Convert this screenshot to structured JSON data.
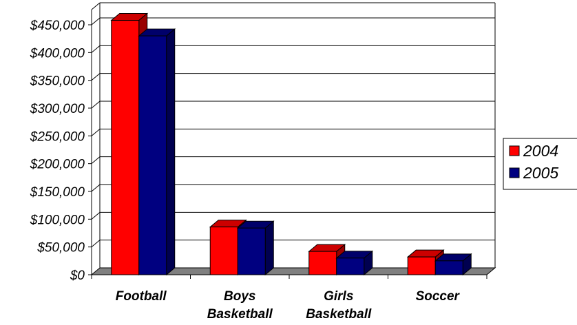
{
  "chart_data": {
    "type": "bar",
    "title": "",
    "xlabel": "",
    "ylabel": "",
    "categories": [
      [
        "Football"
      ],
      [
        "Boys",
        "Basketball"
      ],
      [
        "Girls",
        "Basketball"
      ],
      [
        "Soccer"
      ]
    ],
    "series": [
      {
        "name": "2004",
        "values": [
          458000,
          86000,
          42000,
          32000
        ]
      },
      {
        "name": "2005",
        "values": [
          430000,
          84000,
          30000,
          25000
        ]
      }
    ],
    "ylim": [
      0,
      450000
    ],
    "ytick_step": 50000,
    "ytick_labels": [
      "$0",
      "$50,000",
      "$100,000",
      "$150,000",
      "$200,000",
      "$250,000",
      "$300,000",
      "$350,000",
      "$400,000",
      "$450,000"
    ],
    "grid": true,
    "legend_position": "right",
    "colors": {
      "2004": {
        "front": "#ff0000",
        "top": "#cc0000",
        "side": "#990000"
      },
      "2005": {
        "front": "#000080",
        "top": "#00006a",
        "side": "#000050"
      },
      "floor": "#808080"
    }
  }
}
